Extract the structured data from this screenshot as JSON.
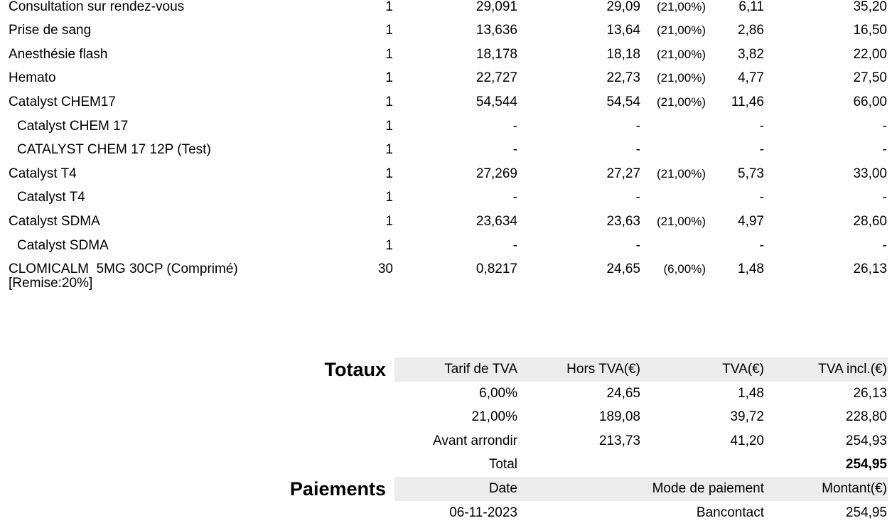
{
  "items": [
    {
      "description": "Consultation sur rendez-vous",
      "qty": "1",
      "unit_price": "29,091",
      "ht": "29,09",
      "rate": "(21,00%)",
      "tva": "6,11",
      "ttc": "35,20"
    },
    {
      "description": "Prise de sang",
      "qty": "1",
      "unit_price": "13,636",
      "ht": "13,64",
      "rate": "(21,00%)",
      "tva": "2,86",
      "ttc": "16,50"
    },
    {
      "description": "Anesthésie flash",
      "qty": "1",
      "unit_price": "18,178",
      "ht": "18,18",
      "rate": "(21,00%)",
      "tva": "3,82",
      "ttc": "22,00"
    },
    {
      "description": "Hemato",
      "qty": "1",
      "unit_price": "22,727",
      "ht": "22,73",
      "rate": "(21,00%)",
      "tva": "4,77",
      "ttc": "27,50"
    },
    {
      "description": "Catalyst CHEM17",
      "qty": "1",
      "unit_price": "54,544",
      "ht": "54,54",
      "rate": "(21,00%)",
      "tva": "11,46",
      "ttc": "66,00",
      "components": [
        {
          "description": "Catalyst CHEM 17",
          "qty": "1",
          "unit_price": "-",
          "ht": "-",
          "tva": "-",
          "ttc": "-"
        },
        {
          "description": "CATALYST CHEM 17 12P (Test)",
          "qty": "1",
          "unit_price": "-",
          "ht": "-",
          "tva": "-",
          "ttc": "-"
        }
      ]
    },
    {
      "description": "Catalyst T4",
      "qty": "1",
      "unit_price": "27,269",
      "ht": "27,27",
      "rate": "(21,00%)",
      "tva": "5,73",
      "ttc": "33,00",
      "components": [
        {
          "description": "Catalyst T4",
          "qty": "1",
          "unit_price": "-",
          "ht": "-",
          "tva": "-",
          "ttc": "-"
        }
      ]
    },
    {
      "description": "Catalyst SDMA",
      "qty": "1",
      "unit_price": "23,634",
      "ht": "23,63",
      "rate": "(21,00%)",
      "tva": "4,97",
      "ttc": "28,60",
      "components": [
        {
          "description": "Catalyst SDMA",
          "qty": "1",
          "unit_price": "-",
          "ht": "-",
          "tva": "-",
          "ttc": "-"
        }
      ]
    },
    {
      "description": "CLOMICALM  5MG 30CP (Comprimé)",
      "note": "[Remise:20%]",
      "qty": "30",
      "unit_price": "0,8217",
      "ht": "24,65",
      "rate": "(6,00%)",
      "tva": "1,48",
      "ttc": "26,13"
    }
  ],
  "totals": {
    "title": "Totaux",
    "headers": [
      "Tarif de TVA",
      "Hors TVA(€)",
      "TVA(€)",
      "TVA incl.(€)"
    ],
    "rows": [
      [
        "6,00%",
        "24,65",
        "1,48",
        "26,13"
      ],
      [
        "21,00%",
        "189,08",
        "39,72",
        "228,80"
      ],
      [
        "Avant arrondir",
        "213,73",
        "41,20",
        "254,93"
      ]
    ],
    "total": {
      "label": "Total",
      "value": "254,95"
    }
  },
  "payments": {
    "title": "Paiements",
    "headers": [
      "Date",
      "Mode de paiement",
      "Montant(€)"
    ],
    "rows": [
      [
        "06-11-2023",
        "Bancontact",
        "254,95"
      ]
    ]
  }
}
